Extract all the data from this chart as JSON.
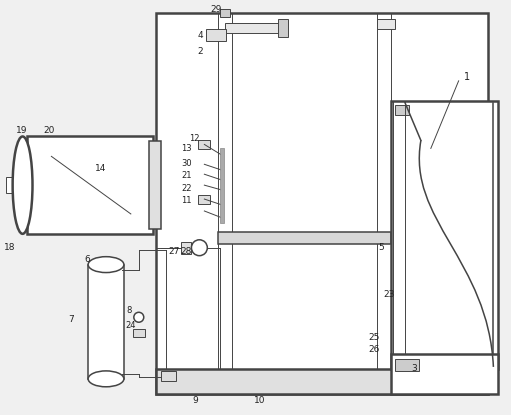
{
  "bg": "#f0f0f0",
  "lc": "#444444",
  "lc_thin": "#555555",
  "fig_w": 5.11,
  "fig_h": 4.15,
  "dpi": 100
}
